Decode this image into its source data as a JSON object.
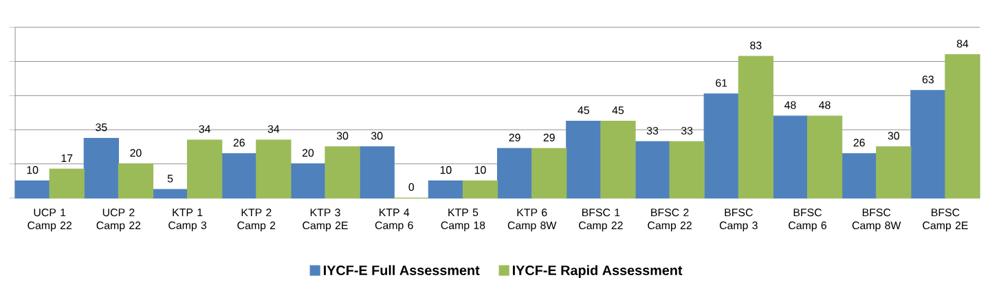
{
  "chart_data": {
    "type": "bar",
    "categories": [
      "UCP 1 Camp 22",
      "UCP 2 Camp 22",
      "KTP 1 Camp 3",
      "KTP 2 Camp 2",
      "KTP 3 Camp 2E",
      "KTP 4 Camp 6",
      "KTP 5 Camp 18",
      "KTP 6 Camp 8W",
      "BFSC 1 Camp 22",
      "BFSC 2 Camp 22",
      "BFSC Camp 3",
      "BFSC Camp 6",
      "BFSC Camp 8W",
      "BFSC Camp 2E"
    ],
    "series": [
      {
        "name": "IYCF-E Full Assessment",
        "color": "#4f81bd",
        "values": [
          10,
          35,
          5,
          26,
          20,
          30,
          10,
          29,
          45,
          33,
          61,
          48,
          26,
          63
        ]
      },
      {
        "name": "IYCF-E Rapid Assessment",
        "color": "#9bbb59",
        "values": [
          17,
          20,
          34,
          34,
          30,
          0,
          10,
          29,
          45,
          33,
          83,
          48,
          30,
          84
        ]
      }
    ],
    "ylim": [
      0,
      100
    ],
    "yticks": [
      {
        "value": 0,
        "label": null
      },
      {
        "value": 20,
        "label": null
      },
      {
        "value": 40,
        "label": null
      },
      {
        "value": 60,
        "label": null
      },
      {
        "value": 80,
        "label": null
      },
      {
        "value": 100,
        "label": null
      }
    ],
    "tick_labels": "x",
    "grid": "y",
    "legend": "bottom",
    "data_labels": true
  }
}
